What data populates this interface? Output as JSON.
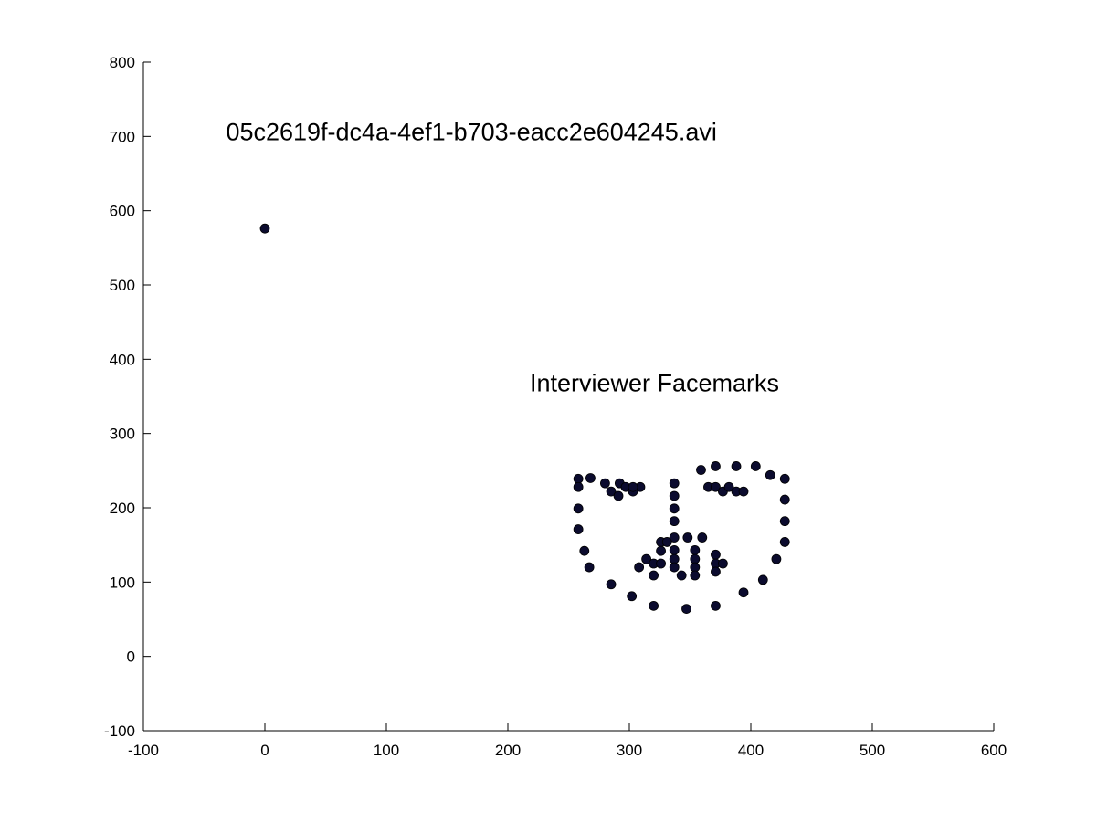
{
  "chart_data": {
    "type": "scatter",
    "title": "",
    "xlabel": "",
    "ylabel": "",
    "xlim": [
      -100,
      600
    ],
    "ylim": [
      -100,
      800
    ],
    "x_ticks": [
      -100,
      0,
      100,
      200,
      300,
      400,
      500,
      600
    ],
    "y_ticks": [
      -100,
      0,
      100,
      200,
      300,
      400,
      500,
      600,
      700,
      800
    ],
    "x_tick_labels": [
      "-100",
      "0",
      "100",
      "200",
      "300",
      "400",
      "500",
      "600"
    ],
    "y_tick_labels": [
      "-100",
      "0",
      "100",
      "200",
      "300",
      "400",
      "500",
      "600",
      "700",
      "800"
    ],
    "grid": false,
    "marker_color": "#0b0b2e",
    "annotations": [
      {
        "text": "05c2619f-dc4a-4ef1-b703-eacc2e604245.avi",
        "x": -32,
        "y": 695
      },
      {
        "text": "Interviewer Facemarks",
        "x": 218,
        "y": 357
      }
    ],
    "series": [
      {
        "points": [
          [
            0,
            576
          ],
          [
            258,
            239
          ],
          [
            258,
            228
          ],
          [
            258,
            199
          ],
          [
            258,
            171
          ],
          [
            263,
            142
          ],
          [
            267,
            120
          ],
          [
            285,
            97
          ],
          [
            302,
            81
          ],
          [
            320,
            68
          ],
          [
            347,
            64
          ],
          [
            371,
            68
          ],
          [
            394,
            86
          ],
          [
            410,
            103
          ],
          [
            421,
            131
          ],
          [
            428,
            154
          ],
          [
            428,
            182
          ],
          [
            428,
            211
          ],
          [
            428,
            239
          ],
          [
            268,
            240
          ],
          [
            280,
            233
          ],
          [
            292,
            233
          ],
          [
            285,
            222
          ],
          [
            291,
            216
          ],
          [
            297,
            228
          ],
          [
            303,
            222
          ],
          [
            309,
            228
          ],
          [
            303,
            228
          ],
          [
            337,
            233
          ],
          [
            337,
            216
          ],
          [
            337,
            199
          ],
          [
            337,
            182
          ],
          [
            337,
            160
          ],
          [
            359,
            251
          ],
          [
            371,
            256
          ],
          [
            388,
            256
          ],
          [
            404,
            256
          ],
          [
            416,
            244
          ],
          [
            365,
            228
          ],
          [
            371,
            228
          ],
          [
            377,
            222
          ],
          [
            382,
            228
          ],
          [
            388,
            222
          ],
          [
            394,
            222
          ],
          [
            308,
            120
          ],
          [
            314,
            131
          ],
          [
            320,
            125
          ],
          [
            326,
            154
          ],
          [
            326,
            142
          ],
          [
            326,
            125
          ],
          [
            320,
            109
          ],
          [
            331,
            154
          ],
          [
            337,
            143
          ],
          [
            337,
            131
          ],
          [
            337,
            120
          ],
          [
            343,
            109
          ],
          [
            348,
            160
          ],
          [
            354,
            143
          ],
          [
            354,
            131
          ],
          [
            354,
            120
          ],
          [
            354,
            109
          ],
          [
            360,
            160
          ],
          [
            371,
            137
          ],
          [
            371,
            125
          ],
          [
            371,
            114
          ],
          [
            377,
            125
          ]
        ]
      }
    ]
  }
}
